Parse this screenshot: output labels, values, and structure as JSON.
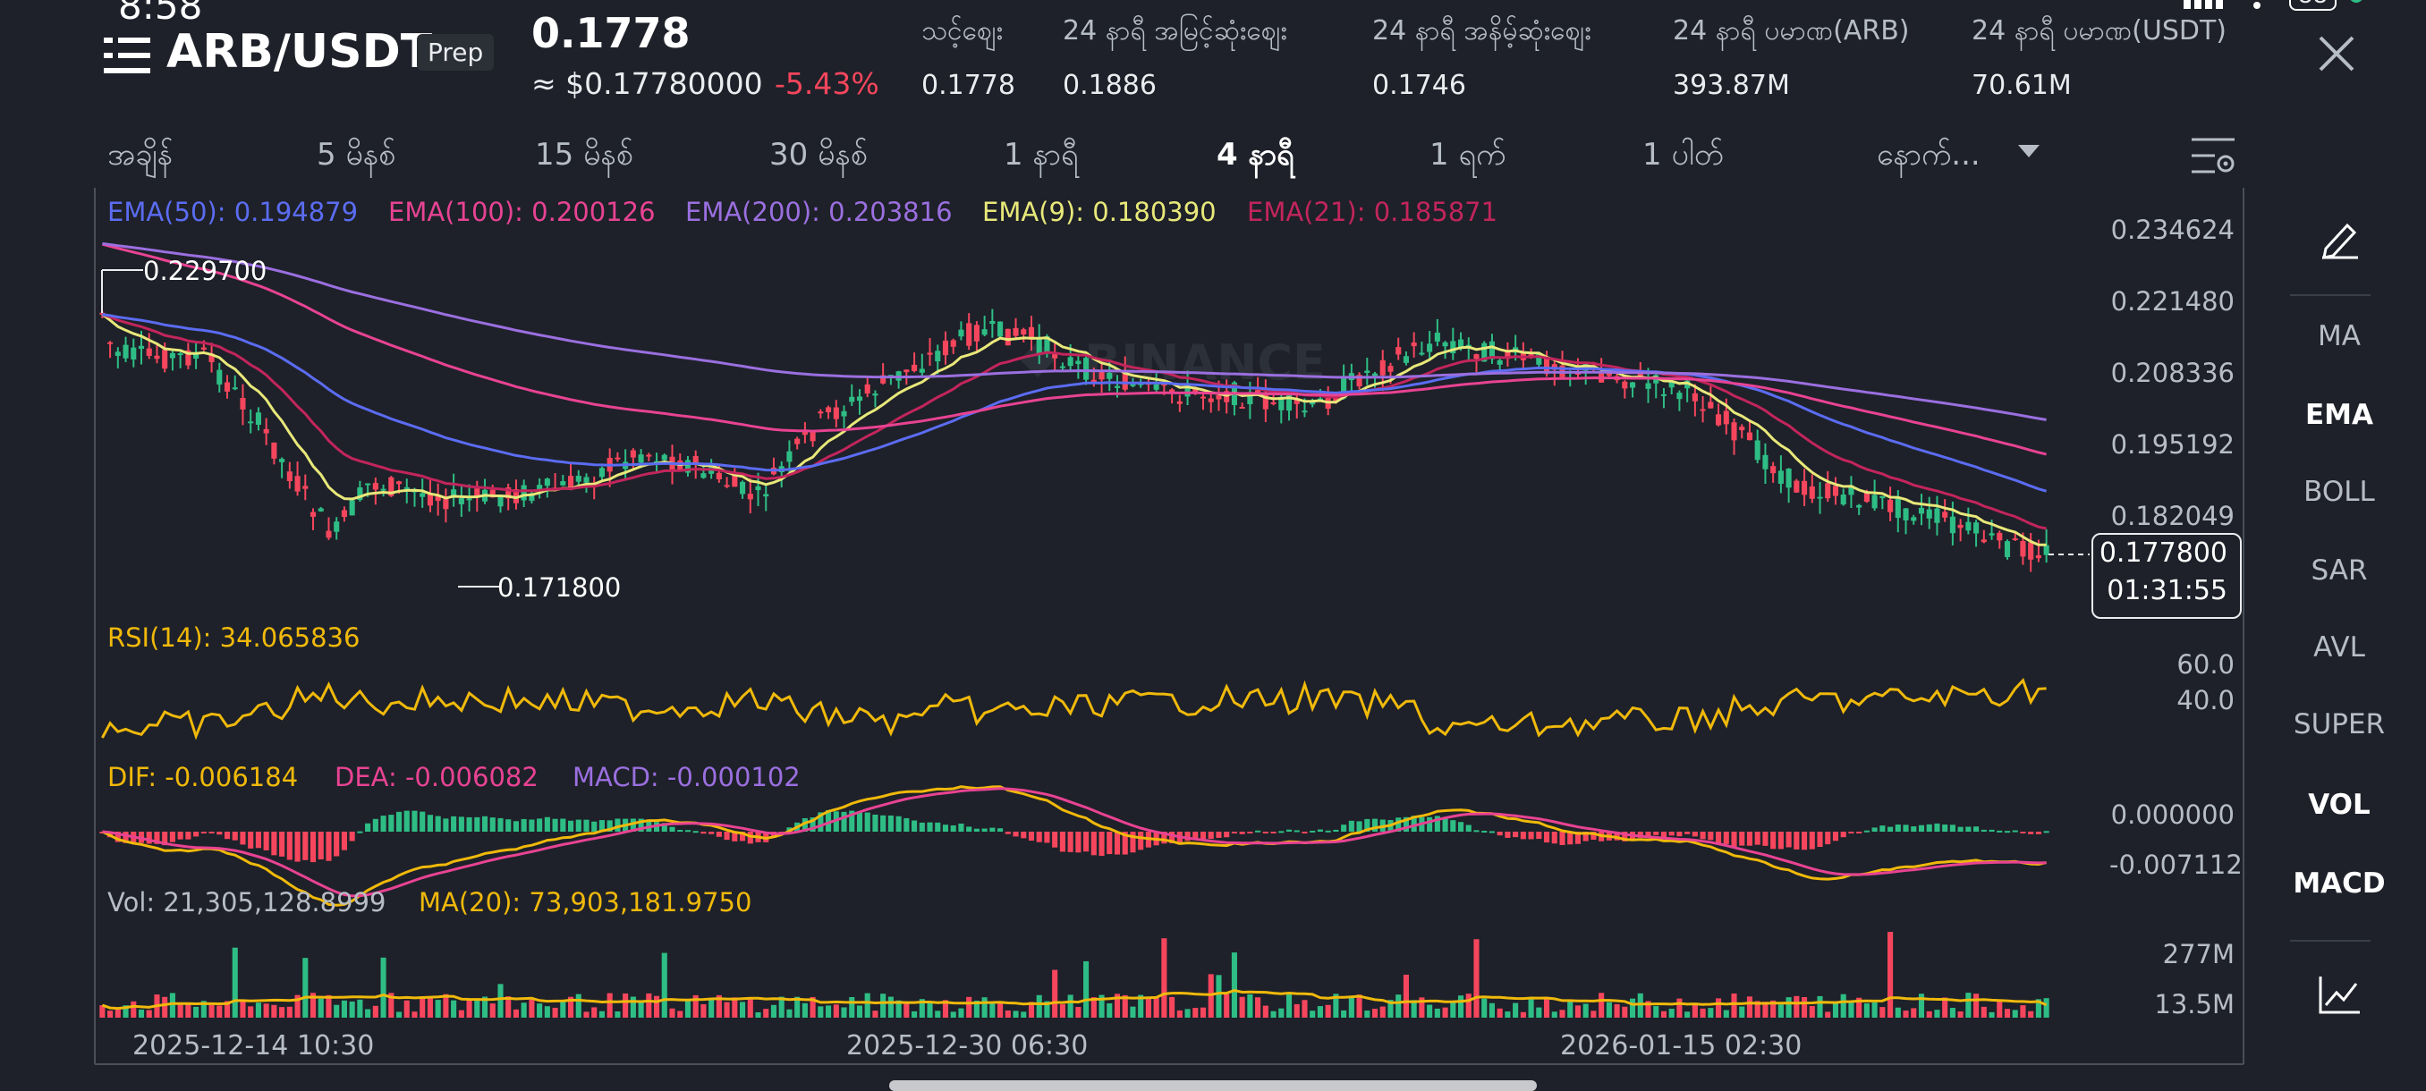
{
  "status_bar": {
    "time": "8:58",
    "battery": "88"
  },
  "header": {
    "pair": "ARB/USDT",
    "badge": "Prep",
    "price": "0.1778",
    "usd_price": "≈ $0.17780000",
    "change_pct": "-5.43%"
  },
  "stats": [
    {
      "label": "သင့်စျေး",
      "value": "0.1778"
    },
    {
      "label": "24 နာရီ အမြင့်ဆုံးစျေး",
      "value": "0.1886"
    },
    {
      "label": "24 နာရီ အနိမ့်ဆုံးစျေး",
      "value": "0.1746"
    },
    {
      "label": "24 နာရီ ပမာဏ(ARB)",
      "value": "393.87M"
    },
    {
      "label": "24 နာရီ ပမာဏ(USDT)",
      "value": "70.61M"
    }
  ],
  "tabs": [
    "အချိန်",
    "5 မိနစ်",
    "15 မိနစ်",
    "30 မိနစ်",
    "1 နာရီ",
    "4 နာရီ",
    "1 ရက်",
    "1 ပါတ်",
    "နောက်..."
  ],
  "active_tab": "4 နာရီ",
  "sidebar": [
    "MA",
    "EMA",
    "BOLL",
    "SAR",
    "AVL",
    "SUPER",
    "VOL",
    "MACD"
  ],
  "sidebar_active": [
    "EMA",
    "VOL",
    "MACD"
  ],
  "ema_legend": [
    {
      "text": "EMA(50): 0.194879",
      "color": "#5b6cf2"
    },
    {
      "text": "EMA(100): 0.200126",
      "color": "#e84393"
    },
    {
      "text": "EMA(200): 0.203816",
      "color": "#9b6fe0"
    },
    {
      "text": "EMA(9): 0.180390",
      "color": "#e8e87a"
    },
    {
      "text": "EMA(21): 0.185871",
      "color": "#c2255c"
    }
  ],
  "price_axis": [
    "0.234624",
    "0.221480",
    "0.208336",
    "0.195192",
    "0.182049"
  ],
  "high_marker": "0.229700",
  "low_marker": "0.171800",
  "last_price": {
    "price": "0.177800",
    "countdown": "01:31:55"
  },
  "rsi": {
    "legend": "RSI(14): 34.065836",
    "axis": [
      "60.0",
      "40.0"
    ]
  },
  "macd": {
    "dif": "DIF: -0.006184",
    "dea": "DEA: -0.006082",
    "macd": "MACD: -0.000102",
    "axis": [
      "0.000000",
      "-0.007112"
    ]
  },
  "volume": {
    "vol": "Vol: 21,305,128.8999",
    "ma": "MA(20): 73,903,181.9750",
    "axis": [
      "277M",
      "13.5M"
    ]
  },
  "dates": [
    "2025-12-14 10:30",
    "2025-12-30 06:30",
    "2026-01-15 02:30"
  ],
  "watermark": "BINANCE",
  "colors": {
    "up": "#2ebd85",
    "down": "#f6465d",
    "background": "#1e2129",
    "rsi": "#f0b90b",
    "dif": "#f0b90b",
    "dea": "#e84393",
    "ema9": "#e8e87a",
    "ema21": "#c2255c",
    "ema50": "#5b6cf2",
    "ema100": "#e84393",
    "ema200": "#9b6fe0"
  }
}
